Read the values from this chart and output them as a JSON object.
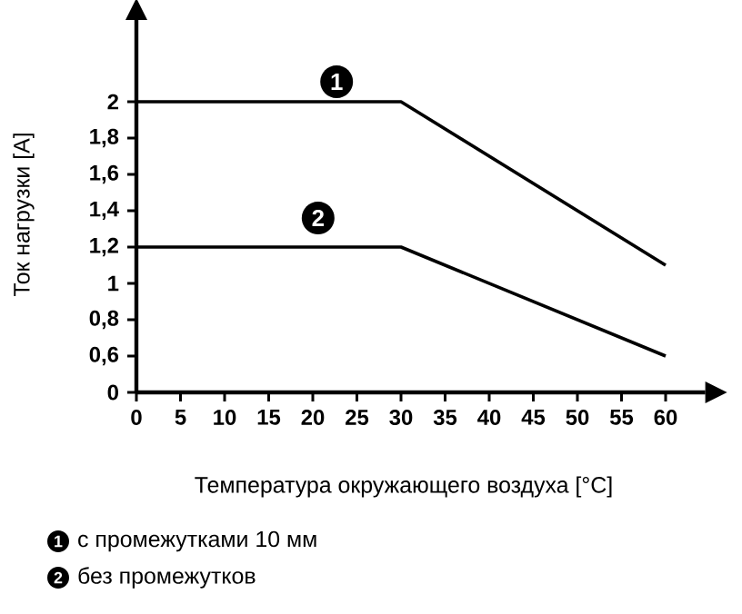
{
  "chart_data": {
    "type": "line",
    "xlabel": "Температура окружающего воздуха [°C]",
    "ylabel": "Ток нагрузки [A]",
    "x": [
      0,
      30,
      60
    ],
    "series": [
      {
        "name": "с промежутками 10 мм",
        "color": "#000000",
        "values": [
          2,
          2,
          1.1
        ]
      },
      {
        "name": "без промежутков",
        "color": "#000000",
        "values": [
          1.2,
          1.2,
          0.6
        ]
      }
    ],
    "xlim": [
      0,
      64.5
    ],
    "ylim": [
      0.4,
      2.45
    ],
    "xticks": [
      0,
      5,
      10,
      15,
      20,
      25,
      30,
      35,
      40,
      45,
      50,
      55,
      60
    ],
    "yticks": [
      {
        "value": 0.4,
        "label": "0"
      },
      {
        "value": 0.6,
        "label": "0,6"
      },
      {
        "value": 0.8,
        "label": "0,8"
      },
      {
        "value": 1,
        "label": "1"
      },
      {
        "value": 1.2,
        "label": "1,2"
      },
      {
        "value": 1.4,
        "label": "1,4"
      },
      {
        "value": 1.6,
        "label": "1,6"
      },
      {
        "value": 1.8,
        "label": "1,8"
      },
      {
        "value": 2,
        "label": "2"
      }
    ],
    "annotations": [
      {
        "text": "1",
        "x": 22.7,
        "y": 2.11
      },
      {
        "text": "2",
        "x": 20.6,
        "y": 1.36
      }
    ],
    "legend": "bottom",
    "marker": "none",
    "line_style": "solid",
    "grid": false
  }
}
